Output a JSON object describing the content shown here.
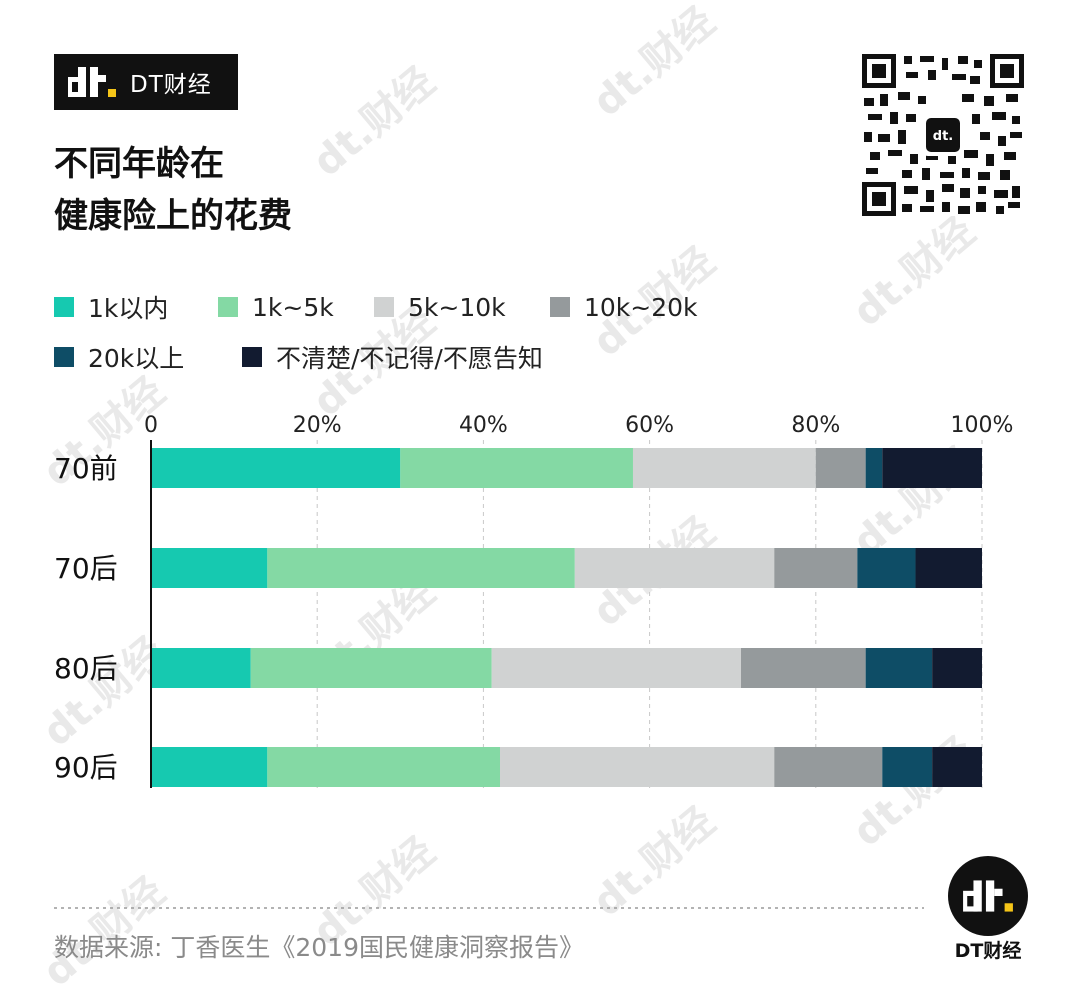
{
  "brand": {
    "name": "DT财经",
    "logo_text": "dt."
  },
  "title": {
    "line1": "不同年龄在",
    "line2": "健康险上的花费"
  },
  "source": "数据来源: 丁香医生《2019国民健康洞察报告》",
  "colors": {
    "series": [
      "#16c9b0",
      "#84d9a4",
      "#d0d2d2",
      "#959a9c",
      "#0e4d66",
      "#121b30"
    ],
    "gridline": "#c8c8c8",
    "axis": "#111111",
    "accent": "#f5c518"
  },
  "chart_data": {
    "type": "bar",
    "orientation": "horizontal",
    "stacked": true,
    "categories": [
      "70前",
      "70后",
      "80后",
      "90后"
    ],
    "series": [
      {
        "name": "1k以内",
        "values": [
          30,
          14,
          12,
          14
        ]
      },
      {
        "name": "1k~5k",
        "values": [
          28,
          37,
          29,
          28
        ]
      },
      {
        "name": "5k~10k",
        "values": [
          22,
          24,
          30,
          33
        ]
      },
      {
        "name": "10k~20k",
        "values": [
          6,
          10,
          15,
          13
        ]
      },
      {
        "name": "20k以上",
        "values": [
          2,
          7,
          8,
          6
        ]
      },
      {
        "name": "不清楚/不记得/不愿告知",
        "values": [
          12,
          8,
          6,
          6
        ]
      }
    ],
    "x_ticks": [
      "0",
      "20%",
      "40%",
      "60%",
      "80%",
      "100%"
    ],
    "xlim": [
      0,
      100
    ],
    "grid": true,
    "legend_position": "top"
  }
}
